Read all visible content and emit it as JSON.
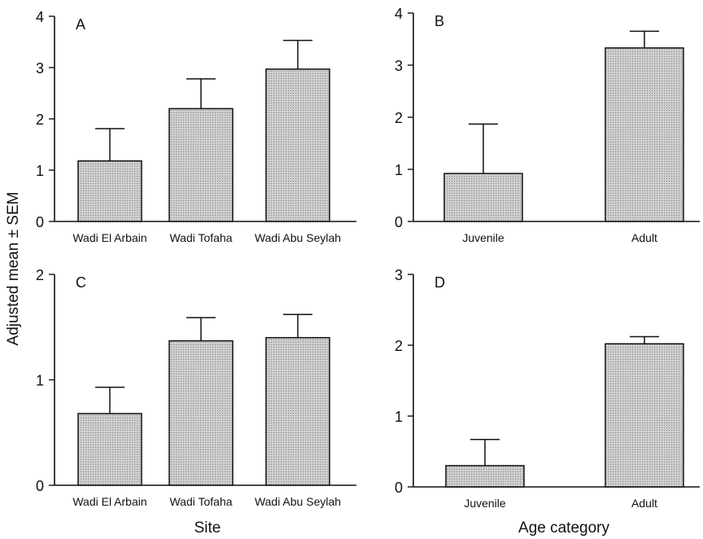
{
  "figure": {
    "ylabel": "Adjusted mean ± SEM",
    "xlabel_left": "Site",
    "xlabel_right": "Age category"
  },
  "colors": {
    "bar_fill": "#c8c8c8",
    "bar_stroke": "#111111",
    "axis": "#111111"
  },
  "chart_data": [
    {
      "panel": "A",
      "type": "bar",
      "categories": [
        "Wadi El Arbain",
        "Wadi Tofaha",
        "Wadi Abu Seylah"
      ],
      "values": [
        1.18,
        2.2,
        2.97
      ],
      "errors": [
        0.63,
        0.58,
        0.56
      ],
      "ylim": [
        0,
        4
      ],
      "yticks": [
        0,
        1,
        2,
        3,
        4
      ],
      "grid": false
    },
    {
      "panel": "B",
      "type": "bar",
      "categories": [
        "Juvenile",
        "Adult"
      ],
      "values": [
        0.92,
        3.33
      ],
      "errors": [
        0.95,
        0.32
      ],
      "ylim": [
        0,
        4
      ],
      "yticks": [
        0,
        1,
        2,
        3,
        4
      ],
      "grid": false
    },
    {
      "panel": "C",
      "type": "bar",
      "categories": [
        "Wadi El Arbain",
        "Wadi Tofaha",
        "Wadi Abu Seylah"
      ],
      "values": [
        0.68,
        1.37,
        1.4
      ],
      "errors": [
        0.25,
        0.22,
        0.22
      ],
      "ylim": [
        0,
        2
      ],
      "yticks": [
        0,
        1,
        2
      ],
      "grid": false
    },
    {
      "panel": "D",
      "type": "bar",
      "categories": [
        "Juvenile",
        "Adult"
      ],
      "values": [
        0.3,
        2.02
      ],
      "errors": [
        0.37,
        0.1
      ],
      "ylim": [
        0,
        3
      ],
      "yticks": [
        0,
        1,
        2,
        3
      ],
      "grid": false
    }
  ]
}
